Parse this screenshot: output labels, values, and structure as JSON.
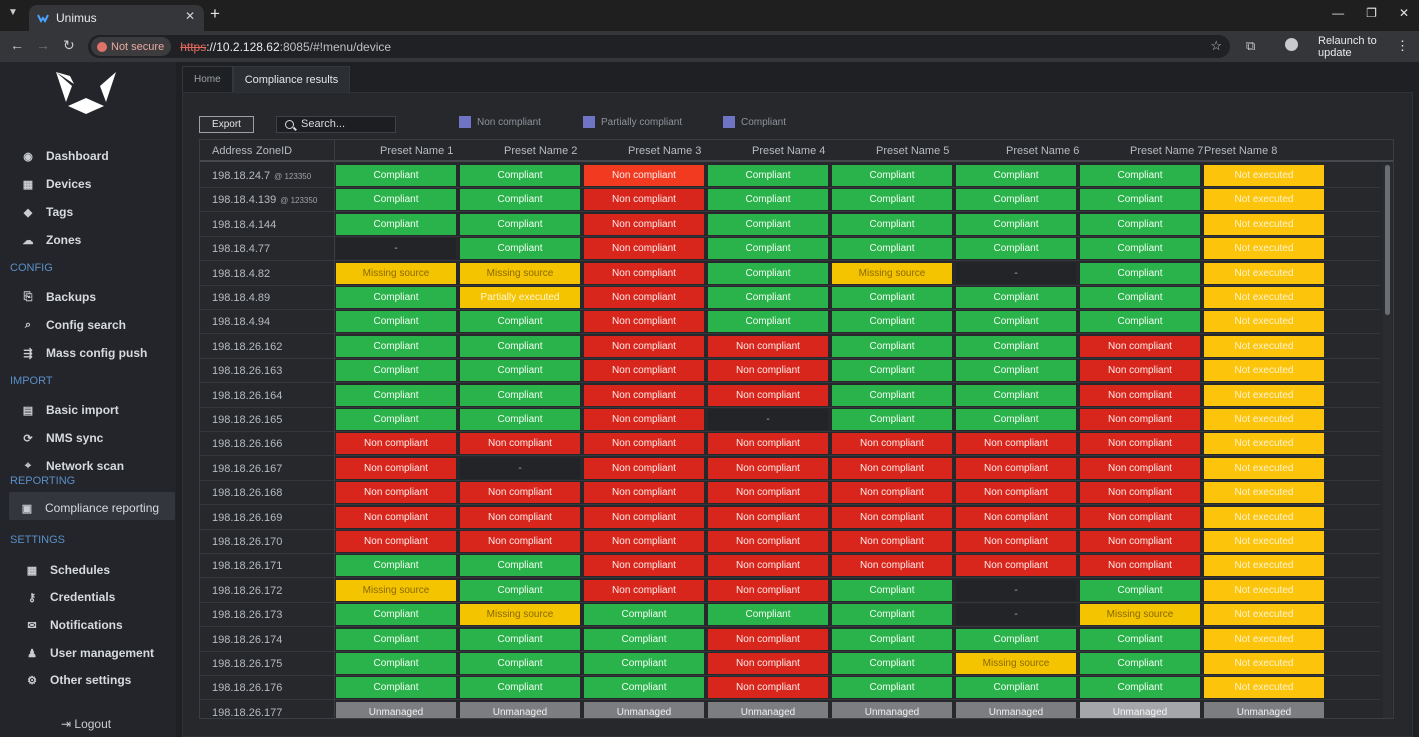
{
  "browser": {
    "tab_title": "Unimus",
    "new_tab_glyph": "+",
    "close_glyph": "✕",
    "not_secure": "Not secure",
    "url_proto": "https",
    "url_host": "://10.2.128.62",
    "url_rest": ":8085/#!menu/device",
    "relaunch": "Relaunch to update"
  },
  "sidebar": {
    "items": [
      {
        "label": "Dashboard",
        "icon": "dashboard-icon"
      },
      {
        "label": "Devices",
        "icon": "devices-icon"
      },
      {
        "label": "Tags",
        "icon": "tags-icon"
      },
      {
        "label": "Zones",
        "icon": "zones-icon"
      }
    ],
    "config_label": "CONFIG",
    "config_items": [
      {
        "label": "Backups",
        "icon": "backups-icon"
      },
      {
        "label": "Config search",
        "icon": "search-icon"
      },
      {
        "label": "Mass config push",
        "icon": "push-icon"
      }
    ],
    "import_label": "IMPORT",
    "import_items": [
      {
        "label": "Basic import",
        "icon": "file-icon"
      },
      {
        "label": "NMS sync",
        "icon": "sync-icon"
      },
      {
        "label": "Network scan",
        "icon": "scan-icon"
      }
    ],
    "reporting_label": "REPORTING",
    "reporting_items": [
      {
        "label": "Compliance reporting",
        "icon": "clipboard-icon"
      }
    ],
    "settings_label": "SETTINGS",
    "settings_items": [
      {
        "label": "Schedules",
        "icon": "calendar-icon"
      },
      {
        "label": "Credentials",
        "icon": "key-icon"
      },
      {
        "label": "Notifications",
        "icon": "envelope-icon"
      },
      {
        "label": "User management",
        "icon": "users-icon"
      },
      {
        "label": "Other settings",
        "icon": "gears-icon"
      }
    ],
    "logout": "Logout"
  },
  "tabs": {
    "home": "Home",
    "compliance": "Compliance results"
  },
  "toolbar": {
    "export": "Export",
    "search_placeholder": "Search...",
    "legend": [
      "Non compliant",
      "Partially compliant",
      "Compliant"
    ]
  },
  "table": {
    "headers": [
      "Address",
      "ZoneID",
      "Preset Name 1",
      "Preset Name 2",
      "Preset Name 3",
      "Preset Name 4",
      "Preset Name 5",
      "Preset Name 6",
      "Preset Name 7",
      "Preset Name 8"
    ],
    "rows": [
      {
        "address": "198.18.24.7",
        "zone": "@ 123350",
        "cells": [
          "Compliant",
          "Compliant",
          "Non compliant*",
          "Compliant",
          "Compliant",
          "Compliant",
          "Compliant",
          "Not executed"
        ]
      },
      {
        "address": "198.18.4.139",
        "zone": "@ 123350",
        "cells": [
          "Compliant",
          "Compliant",
          "Non compliant",
          "Compliant",
          "Compliant",
          "Compliant",
          "Compliant",
          "Not executed"
        ]
      },
      {
        "address": "198.18.4.144",
        "zone": "",
        "cells": [
          "Compliant",
          "Compliant",
          "Non compliant",
          "Compliant",
          "Compliant",
          "Compliant",
          "Compliant",
          "Not executed"
        ]
      },
      {
        "address": "198.18.4.77",
        "zone": "",
        "cells": [
          "-",
          "Compliant",
          "Non compliant",
          "Compliant",
          "Compliant",
          "Compliant",
          "Compliant",
          "Not executed"
        ]
      },
      {
        "address": "198.18.4.82",
        "zone": "",
        "cells": [
          "Missing source",
          "Missing source",
          "Non compliant",
          "Compliant",
          "Missing source",
          "-",
          "Compliant",
          "Not executed"
        ]
      },
      {
        "address": "198.18.4.89",
        "zone": "",
        "cells": [
          "Compliant",
          "Partially executed",
          "Non compliant",
          "Compliant",
          "Compliant",
          "Compliant",
          "Compliant",
          "Not executed"
        ]
      },
      {
        "address": "198.18.4.94",
        "zone": "",
        "cells": [
          "Compliant",
          "Compliant",
          "Non compliant",
          "Compliant",
          "Compliant",
          "Compliant",
          "Compliant",
          "Not executed"
        ]
      },
      {
        "address": "198.18.26.162",
        "zone": "",
        "cells": [
          "Compliant",
          "Compliant",
          "Non compliant",
          "Non compliant",
          "Compliant",
          "Compliant",
          "Non compliant",
          "Not executed"
        ]
      },
      {
        "address": "198.18.26.163",
        "zone": "",
        "cells": [
          "Compliant",
          "Compliant",
          "Non compliant",
          "Non compliant",
          "Compliant",
          "Compliant",
          "Non compliant",
          "Not executed"
        ]
      },
      {
        "address": "198.18.26.164",
        "zone": "",
        "cells": [
          "Compliant",
          "Compliant",
          "Non compliant",
          "Non compliant",
          "Compliant",
          "Compliant",
          "Non compliant",
          "Not executed"
        ]
      },
      {
        "address": "198.18.26.165",
        "zone": "",
        "cells": [
          "Compliant",
          "Compliant",
          "Non compliant",
          "-",
          "Compliant",
          "Compliant",
          "Non compliant",
          "Not executed"
        ]
      },
      {
        "address": "198.18.26.166",
        "zone": "",
        "cells": [
          "Non compliant",
          "Non compliant",
          "Non compliant",
          "Non compliant",
          "Non compliant",
          "Non compliant",
          "Non compliant",
          "Not executed"
        ]
      },
      {
        "address": "198.18.26.167",
        "zone": "",
        "cells": [
          "Non compliant",
          "-",
          "Non compliant",
          "Non compliant",
          "Non compliant",
          "Non compliant",
          "Non compliant",
          "Not executed"
        ]
      },
      {
        "address": "198.18.26.168",
        "zone": "",
        "cells": [
          "Non compliant",
          "Non compliant",
          "Non compliant",
          "Non compliant",
          "Non compliant",
          "Non compliant",
          "Non compliant",
          "Not executed"
        ]
      },
      {
        "address": "198.18.26.169",
        "zone": "",
        "cells": [
          "Non compliant",
          "Non compliant",
          "Non compliant",
          "Non compliant",
          "Non compliant",
          "Non compliant",
          "Non compliant",
          "Not executed"
        ]
      },
      {
        "address": "198.18.26.170",
        "zone": "",
        "cells": [
          "Non compliant",
          "Non compliant",
          "Non compliant",
          "Non compliant",
          "Non compliant",
          "Non compliant",
          "Non compliant",
          "Not executed"
        ]
      },
      {
        "address": "198.18.26.171",
        "zone": "",
        "cells": [
          "Compliant",
          "Compliant",
          "Non compliant",
          "Non compliant",
          "Non compliant",
          "Non compliant",
          "Non compliant",
          "Not executed"
        ]
      },
      {
        "address": "198.18.26.172",
        "zone": "",
        "cells": [
          "Missing source",
          "Compliant",
          "Non compliant",
          "Non compliant",
          "Compliant",
          "-",
          "Compliant",
          "Not executed"
        ]
      },
      {
        "address": "198.18.26.173",
        "zone": "",
        "cells": [
          "Compliant",
          "Missing source",
          "Compliant",
          "Compliant",
          "Compliant",
          "-",
          "Missing source",
          "Not executed"
        ]
      },
      {
        "address": "198.18.26.174",
        "zone": "",
        "cells": [
          "Compliant",
          "Compliant",
          "Compliant",
          "Non compliant",
          "Compliant",
          "Compliant",
          "Compliant",
          "Not executed"
        ]
      },
      {
        "address": "198.18.26.175",
        "zone": "",
        "cells": [
          "Compliant",
          "Compliant",
          "Compliant",
          "Non compliant",
          "Compliant",
          "Missing source",
          "Compliant",
          "Not executed"
        ]
      },
      {
        "address": "198.18.26.176",
        "zone": "",
        "cells": [
          "Compliant",
          "Compliant",
          "Compliant",
          "Non compliant",
          "Compliant",
          "Compliant",
          "Compliant",
          "Not executed"
        ]
      },
      {
        "address": "198.18.26.177",
        "zone": "",
        "cells": [
          "Unmanaged",
          "Unmanaged",
          "Unmanaged",
          "Unmanaged",
          "Unmanaged",
          "Unmanaged",
          "Unmanaged*",
          "Unmanaged"
        ]
      }
    ]
  },
  "colors": {
    "compliant": "#2ab34a",
    "non_compliant": "#d9261c",
    "missing_source": "#f5c400",
    "not_executed": "#fcc40b",
    "unmanaged": "#7b7d80",
    "legend_swatch": "#6f74c4",
    "section_label": "#5a8fc7"
  }
}
